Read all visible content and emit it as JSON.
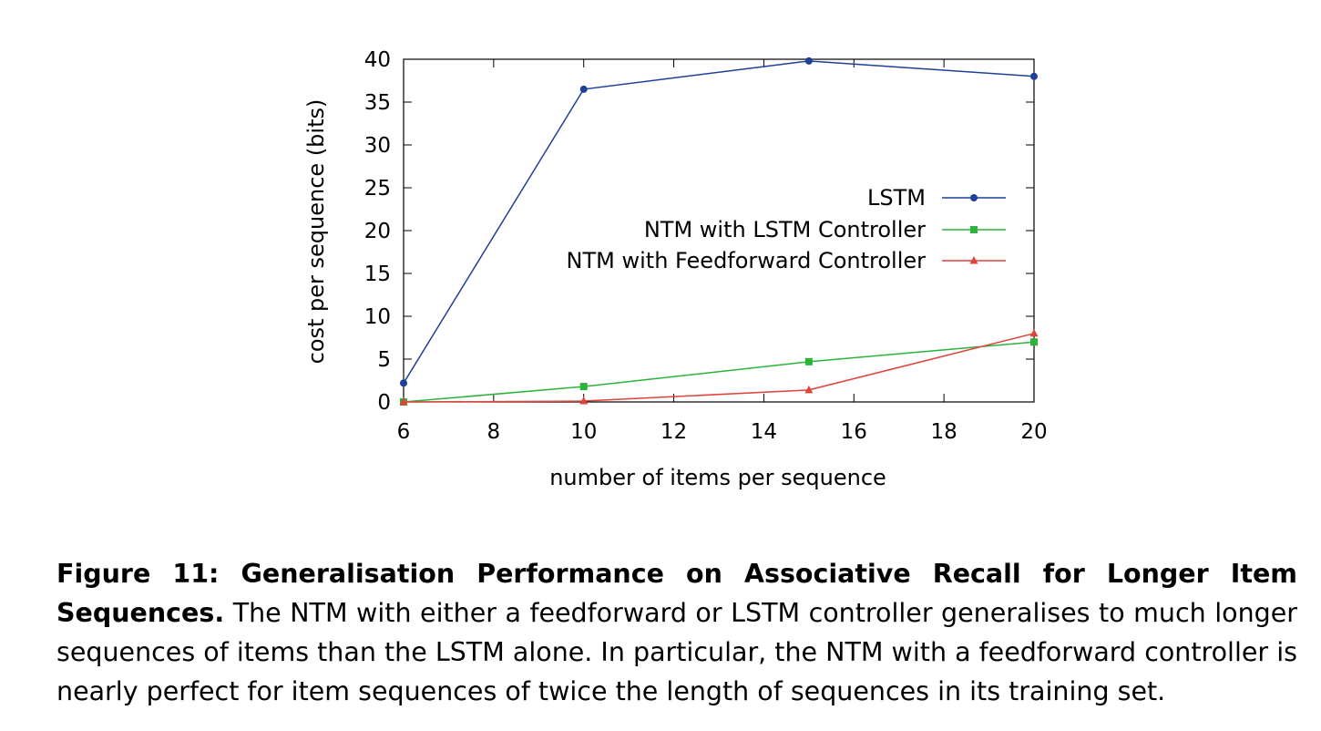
{
  "chart_data": {
    "type": "line",
    "xlabel": "number of items per sequence",
    "ylabel": "cost per sequence (bits)",
    "xlim": [
      6,
      20
    ],
    "ylim": [
      0,
      40
    ],
    "xticks": [
      6,
      8,
      10,
      12,
      14,
      16,
      18,
      20
    ],
    "yticks": [
      0,
      5,
      10,
      15,
      20,
      25,
      30,
      35,
      40
    ],
    "grid": false,
    "legend_position": "center-right",
    "series": [
      {
        "name": "LSTM",
        "color": "#1f3f9a",
        "marker": "circle",
        "points": [
          [
            6,
            2.2
          ],
          [
            10,
            36.5
          ],
          [
            15,
            39.8
          ],
          [
            20,
            38.0
          ]
        ]
      },
      {
        "name": "NTM with LSTM Controller",
        "color": "#2bb33a",
        "marker": "square",
        "points": [
          [
            6,
            0.0
          ],
          [
            10,
            1.8
          ],
          [
            15,
            4.7
          ],
          [
            20,
            7.0
          ]
        ]
      },
      {
        "name": "NTM with Feedforward Controller",
        "color": "#e0443a",
        "marker": "triangle",
        "points": [
          [
            6,
            0.0
          ],
          [
            10,
            0.1
          ],
          [
            15,
            1.4
          ],
          [
            20,
            8.0
          ]
        ]
      }
    ]
  },
  "caption": {
    "title": "Figure 11: Generalisation Performance on Associative Recall for Longer Item Sequences.",
    "body": "The NTM with either a feedforward or LSTM controller generalises to much longer sequences of items than the LSTM alone. In particular, the NTM with a feedforward controller is nearly perfect for item sequences of twice the length of sequences in its training set."
  }
}
